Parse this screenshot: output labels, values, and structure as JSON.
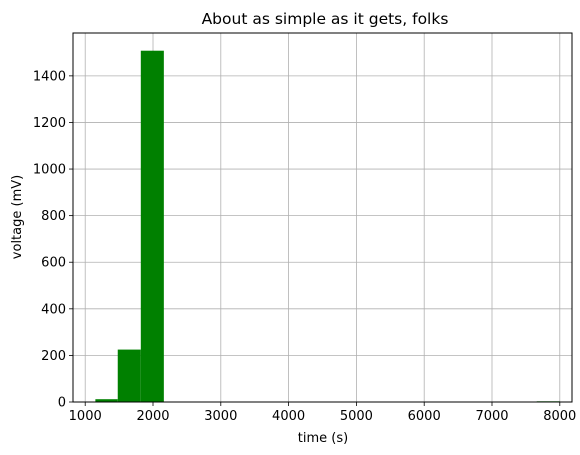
{
  "chart_data": {
    "type": "bar",
    "title": "About as simple as it gets, folks",
    "xlabel": "time (s)",
    "ylabel": "voltage (mV)",
    "xlim": [
      820,
      8180
    ],
    "ylim": [
      0,
      1584
    ],
    "xticks": [
      1000,
      2000,
      3000,
      4000,
      5000,
      6000,
      7000,
      8000
    ],
    "yticks": [
      0,
      200,
      400,
      600,
      800,
      1000,
      1200,
      1400
    ],
    "grid": true,
    "bar_color": "#008000",
    "bins": [
      {
        "x0": 1150,
        "x1": 1480,
        "count": 12
      },
      {
        "x0": 1480,
        "x1": 1820,
        "count": 225
      },
      {
        "x0": 1820,
        "x1": 2160,
        "count": 1508
      },
      {
        "x0": 7660,
        "x1": 8000,
        "count": 3
      }
    ]
  }
}
